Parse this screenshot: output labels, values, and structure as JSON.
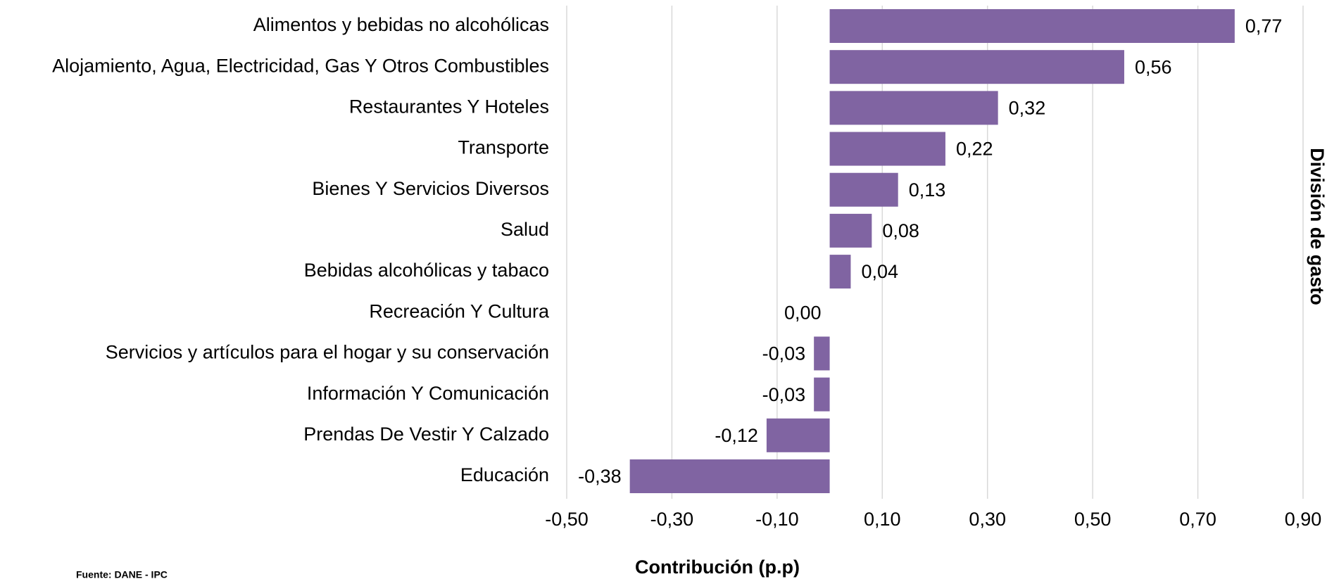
{
  "chart_data": {
    "type": "barh",
    "categories": [
      "Alimentos y bebidas no alcohólicas",
      "Alojamiento, Agua, Electricidad, Gas Y Otros Combustibles",
      "Restaurantes Y Hoteles",
      "Transporte",
      "Bienes Y Servicios Diversos",
      "Salud",
      "Bebidas alcohólicas y tabaco",
      "Recreación Y Cultura",
      "Servicios y artículos para el hogar y su conservación",
      "Información Y Comunicación",
      "Prendas De Vestir Y Calzado",
      "Educación"
    ],
    "values": [
      0.77,
      0.56,
      0.32,
      0.22,
      0.13,
      0.08,
      0.04,
      0.0,
      -0.03,
      -0.03,
      -0.12,
      -0.38
    ],
    "value_labels": [
      "0,77",
      "0,56",
      "0,32",
      "0,22",
      "0,13",
      "0,08",
      "0,04",
      "0,00",
      "-0,03",
      "-0,03",
      "-0,12",
      "-0,38"
    ],
    "color": "#8064a2",
    "xlim": [
      -0.5,
      0.9
    ],
    "xticks": [
      {
        "value": -0.5,
        "label": "-0,50"
      },
      {
        "value": -0.3,
        "label": "-0,30"
      },
      {
        "value": -0.1,
        "label": "-0,10"
      },
      {
        "value": 0.1,
        "label": "0,10"
      },
      {
        "value": 0.3,
        "label": "0,30"
      },
      {
        "value": 0.5,
        "label": "0,50"
      },
      {
        "value": 0.7,
        "label": "0,70"
      },
      {
        "value": 0.9,
        "label": "0,90"
      }
    ],
    "grid": true,
    "xlabel": "Contribución (p.p)",
    "ylabel": "División de gasto",
    "source": "Fuente: DANE - IPC"
  }
}
